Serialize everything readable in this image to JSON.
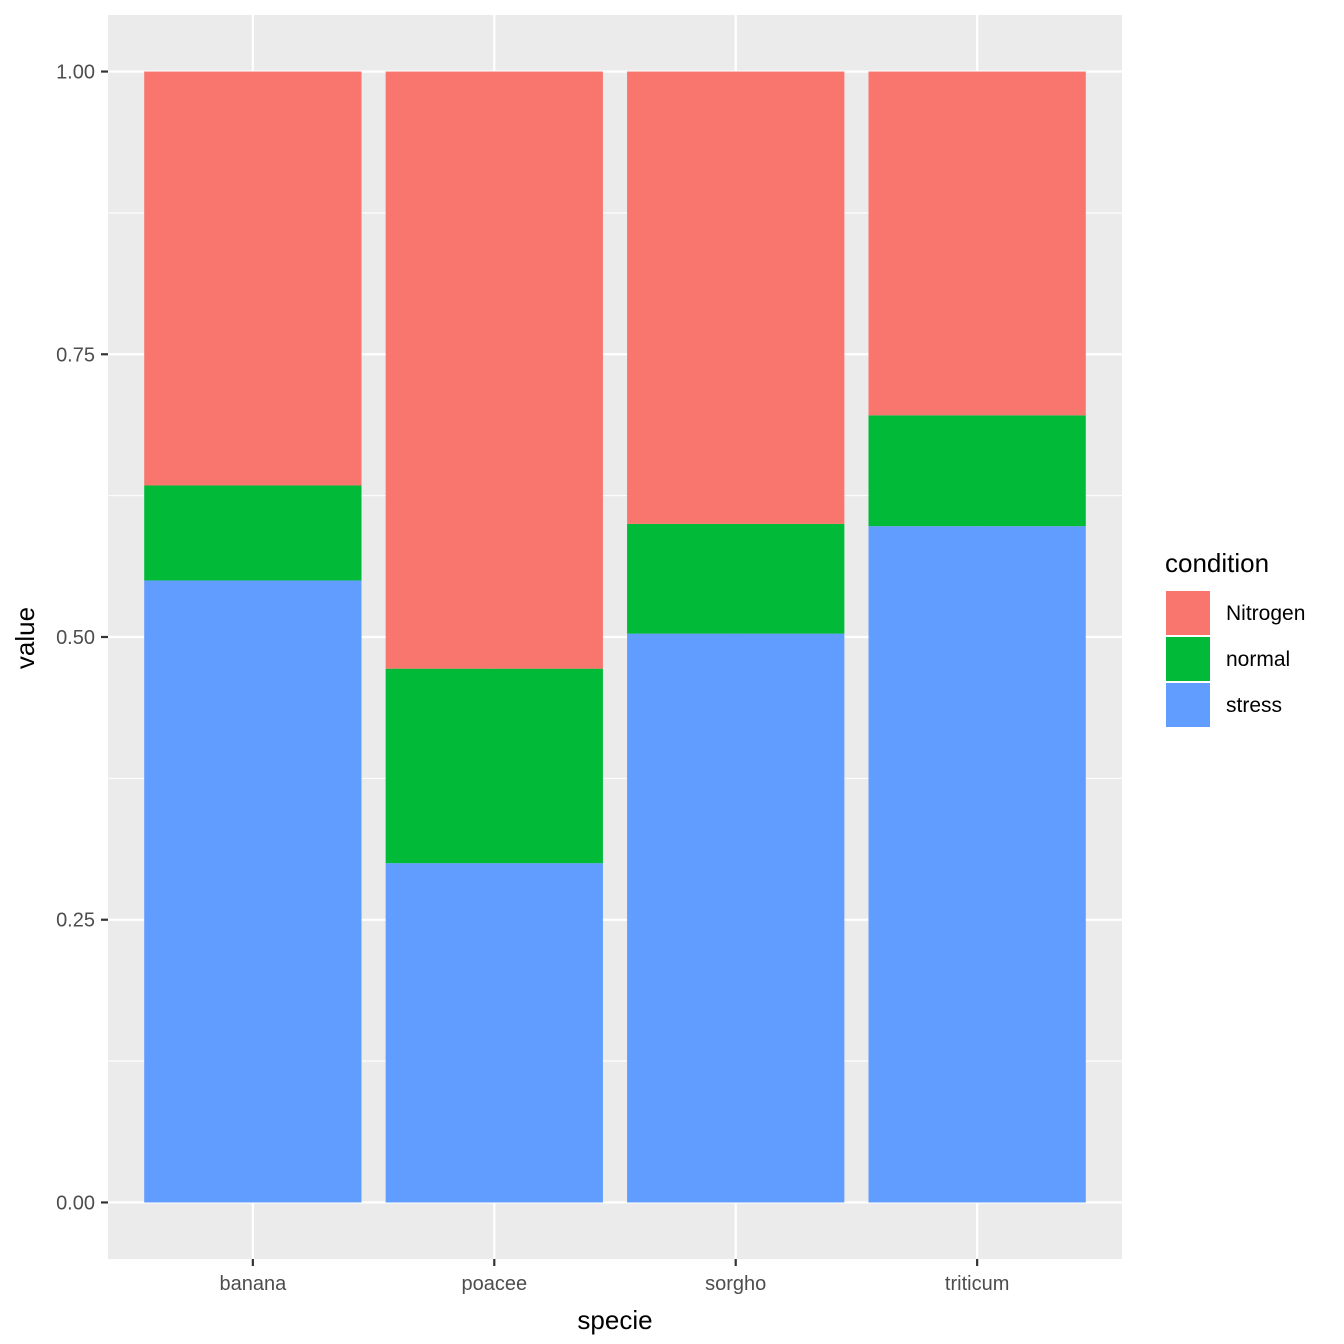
{
  "chart_data": {
    "type": "bar",
    "stacked": true,
    "categories": [
      "banana",
      "poacee",
      "sorgho",
      "triticum"
    ],
    "series": [
      {
        "name": "stress",
        "values": [
          0.55,
          0.3,
          0.503,
          0.598
        ],
        "color": "#619CFF"
      },
      {
        "name": "normal",
        "values": [
          0.084,
          0.172,
          0.097,
          0.098
        ],
        "color": "#00BA38"
      },
      {
        "name": "Nitrogen",
        "values": [
          0.366,
          0.528,
          0.4,
          0.304
        ],
        "color": "#F8766D"
      }
    ],
    "xlabel": "specie",
    "ylabel": "value",
    "ylim": [
      -0.05,
      1.05
    ],
    "yticks": [
      "0.00",
      "0.25",
      "0.50",
      "0.75",
      "1.00"
    ],
    "ytick_values": [
      0,
      0.25,
      0.5,
      0.75,
      1.0
    ],
    "grid": true,
    "legend": {
      "title": "condition",
      "position": "right",
      "entries": [
        {
          "name": "Nitrogen",
          "color": "#F8766D"
        },
        {
          "name": "normal",
          "color": "#00BA38"
        },
        {
          "name": "stress",
          "color": "#619CFF"
        }
      ]
    },
    "colors": {
      "panel": "#EBEBEB",
      "grid": "#FFFFFF",
      "tick": "#333333"
    }
  }
}
